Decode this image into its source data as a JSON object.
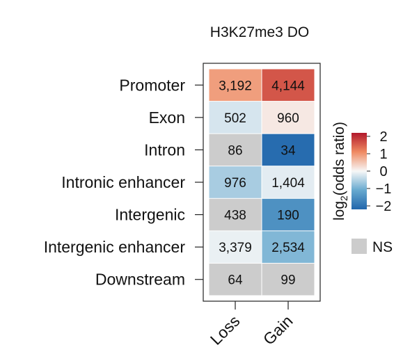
{
  "chart_data": {
    "type": "heatmap",
    "title": "H3K27me3 DO",
    "columns": [
      "Loss",
      "Gain"
    ],
    "rows": [
      "Promoter",
      "Exon",
      "Intron",
      "Intronic enhancer",
      "Intergenic",
      "Intergenic enhancer",
      "Downstream"
    ],
    "counts": [
      [
        "3,192",
        "4,144"
      ],
      [
        "502",
        "960"
      ],
      [
        "86",
        "34"
      ],
      [
        "976",
        "1,404"
      ],
      [
        "438",
        "190"
      ],
      [
        "3,379",
        "2,534"
      ],
      [
        "64",
        "99"
      ]
    ],
    "log2_odds_ratio": [
      [
        0.9,
        1.6
      ],
      [
        -0.25,
        0.15
      ],
      [
        null,
        -2.1
      ],
      [
        -0.6,
        -0.15
      ],
      [
        null,
        -1.5
      ],
      [
        -0.1,
        -0.9
      ],
      [
        null,
        null
      ]
    ],
    "legend": {
      "title": "log2(odds ratio)",
      "title_main": "log",
      "title_sub": "2",
      "title_rest": "(odds ratio)",
      "ticks": [
        2,
        1,
        0,
        -1,
        -2
      ],
      "tick_labels": [
        "2",
        "1",
        "0",
        "−1",
        "−2"
      ],
      "range": [
        -2.2,
        2.2
      ],
      "colors": {
        "high": "#c0392b",
        "mid": "#f7f7f7",
        "low": "#2f73b3"
      },
      "ns_label": "NS",
      "ns_color": "#cccccc"
    }
  }
}
